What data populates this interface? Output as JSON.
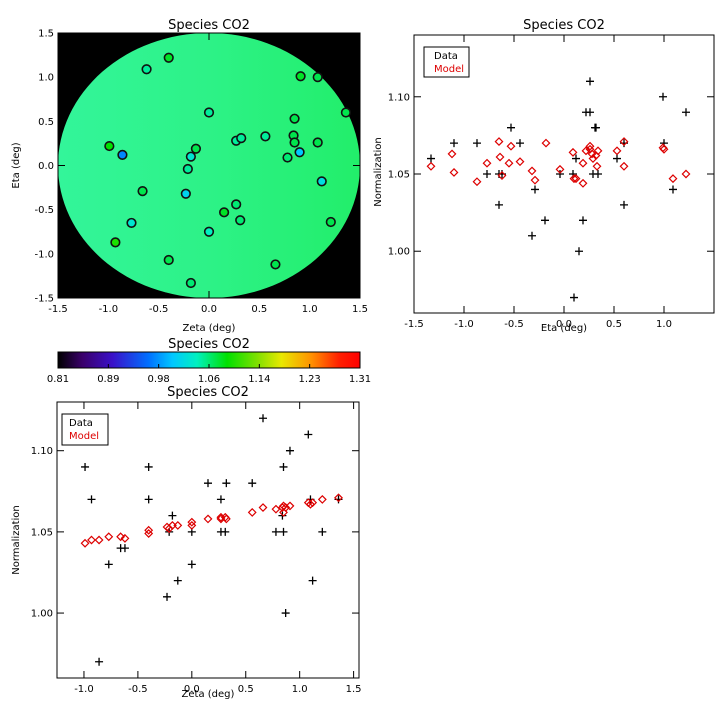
{
  "colors": {
    "data": "#000000",
    "model": "#dd0000",
    "frame": "#000000",
    "mask": "#000000"
  },
  "chart_data": [
    {
      "id": "map",
      "type": "scatter",
      "title": "Species CO2",
      "xlabel": "Zeta (deg)",
      "ylabel": "Eta (deg)",
      "xlim": [
        -1.5,
        1.5
      ],
      "ylim": [
        -1.5,
        1.5
      ],
      "xticks": [
        "-1.5",
        "-1.0",
        "-0.5",
        "0.0",
        "0.5",
        "1.0",
        "1.5"
      ],
      "yticks": [
        "-1.5",
        "-1.0",
        "-0.5",
        "0.0",
        "0.5",
        "1.0",
        "1.5"
      ],
      "grid": false,
      "background_field": "model normalization (green, increasing toward +Zeta)",
      "points": [
        {
          "x": -0.99,
          "y": 0.22,
          "v": 1.09
        },
        {
          "x": -0.86,
          "y": 0.12,
          "v": 0.97
        },
        {
          "x": -0.93,
          "y": -0.87,
          "v": 1.1
        },
        {
          "x": -0.77,
          "y": -0.65,
          "v": 1.03
        },
        {
          "x": -0.66,
          "y": -0.29,
          "v": 1.07
        },
        {
          "x": -0.62,
          "y": 1.09,
          "v": 1.05
        },
        {
          "x": -0.4,
          "y": 1.22,
          "v": 1.08
        },
        {
          "x": -0.4,
          "y": -1.07,
          "v": 1.07
        },
        {
          "x": -0.23,
          "y": -0.32,
          "v": 1.01
        },
        {
          "x": -0.21,
          "y": -0.04,
          "v": 1.05
        },
        {
          "x": -0.18,
          "y": 0.1,
          "v": 1.03
        },
        {
          "x": -0.13,
          "y": 0.19,
          "v": 1.07
        },
        {
          "x": -0.18,
          "y": -1.33,
          "v": 1.06
        },
        {
          "x": 0.0,
          "y": 0.6,
          "v": 1.05
        },
        {
          "x": 0.0,
          "y": -0.75,
          "v": 1.04
        },
        {
          "x": 0.15,
          "y": -0.53,
          "v": 1.08
        },
        {
          "x": 0.27,
          "y": 0.28,
          "v": 1.05
        },
        {
          "x": 0.32,
          "y": 0.31,
          "v": 1.05
        },
        {
          "x": 0.27,
          "y": -0.44,
          "v": 1.06
        },
        {
          "x": 0.31,
          "y": -0.62,
          "v": 1.06
        },
        {
          "x": 0.56,
          "y": 0.33,
          "v": 1.05
        },
        {
          "x": 0.66,
          "y": -1.12,
          "v": 1.07
        },
        {
          "x": 0.78,
          "y": 0.09,
          "v": 1.06
        },
        {
          "x": 0.84,
          "y": 0.34,
          "v": 1.07
        },
        {
          "x": 0.85,
          "y": 0.53,
          "v": 1.07
        },
        {
          "x": 0.85,
          "y": 0.26,
          "v": 1.07
        },
        {
          "x": 0.9,
          "y": 0.15,
          "v": 1.0
        },
        {
          "x": 0.91,
          "y": 1.01,
          "v": 1.08
        },
        {
          "x": 1.08,
          "y": 1.0,
          "v": 1.07
        },
        {
          "x": 1.08,
          "y": 0.26,
          "v": 1.07
        },
        {
          "x": 1.12,
          "y": -0.18,
          "v": 1.02
        },
        {
          "x": 1.21,
          "y": -0.64,
          "v": 1.07
        },
        {
          "x": 1.36,
          "y": 0.6,
          "v": 1.07
        }
      ]
    },
    {
      "id": "eta",
      "type": "scatter",
      "title": "Species CO2",
      "xlabel": "Eta (deg)",
      "ylabel": "Normalization",
      "xlim": [
        -1.5,
        1.5
      ],
      "ylim": [
        0.96,
        1.14
      ],
      "xticks": [
        "-1.5",
        "-1.0",
        "-0.5",
        "0.0",
        "0.5",
        "1.0"
      ],
      "yticks": [
        "1.00",
        "1.05",
        "1.10"
      ],
      "grid": false,
      "legend": {
        "position": "top-left",
        "entries": [
          "Data",
          "Model"
        ]
      },
      "series": [
        {
          "name": "Data",
          "marker": "plus",
          "points": [
            [
              -1.33,
              1.06
            ],
            [
              -1.1,
              1.07
            ],
            [
              -0.87,
              1.07
            ],
            [
              -0.77,
              1.05
            ],
            [
              -0.65,
              1.03
            ],
            [
              -0.65,
              1.05
            ],
            [
              -0.62,
              1.05
            ],
            [
              -0.53,
              1.08
            ],
            [
              -0.44,
              1.07
            ],
            [
              -0.32,
              1.01
            ],
            [
              -0.29,
              1.04
            ],
            [
              -0.19,
              1.02
            ],
            [
              -0.04,
              1.05
            ],
            [
              0.09,
              1.05
            ],
            [
              0.1,
              0.97
            ],
            [
              0.12,
              1.06
            ],
            [
              0.15,
              1.0
            ],
            [
              0.19,
              1.02
            ],
            [
              0.22,
              1.09
            ],
            [
              0.26,
              1.09
            ],
            [
              0.26,
              1.11
            ],
            [
              0.29,
              1.05
            ],
            [
              0.31,
              1.08
            ],
            [
              0.32,
              1.08
            ],
            [
              0.34,
              1.05
            ],
            [
              0.53,
              1.06
            ],
            [
              0.6,
              1.03
            ],
            [
              0.6,
              1.07
            ],
            [
              0.99,
              1.1
            ],
            [
              1.0,
              1.07
            ],
            [
              1.09,
              1.04
            ],
            [
              1.22,
              1.09
            ]
          ]
        },
        {
          "name": "Model",
          "marker": "diamond",
          "points": [
            [
              -1.33,
              1.055
            ],
            [
              -1.12,
              1.063
            ],
            [
              -1.1,
              1.051
            ],
            [
              -0.87,
              1.045
            ],
            [
              -0.77,
              1.057
            ],
            [
              -0.65,
              1.071
            ],
            [
              -0.64,
              1.061
            ],
            [
              -0.62,
              1.049
            ],
            [
              -0.55,
              1.057
            ],
            [
              -0.53,
              1.068
            ],
            [
              -0.44,
              1.058
            ],
            [
              -0.32,
              1.052
            ],
            [
              -0.29,
              1.046
            ],
            [
              -0.18,
              1.07
            ],
            [
              -0.04,
              1.053
            ],
            [
              0.09,
              1.064
            ],
            [
              0.1,
              1.047
            ],
            [
              0.12,
              1.047
            ],
            [
              0.19,
              1.057
            ],
            [
              0.19,
              1.044
            ],
            [
              0.22,
              1.065
            ],
            [
              0.26,
              1.066
            ],
            [
              0.26,
              1.068
            ],
            [
              0.28,
              1.063
            ],
            [
              0.29,
              1.06
            ],
            [
              0.32,
              1.062
            ],
            [
              0.33,
              1.055
            ],
            [
              0.34,
              1.065
            ],
            [
              0.53,
              1.065
            ],
            [
              0.6,
              1.071
            ],
            [
              0.6,
              1.055
            ],
            [
              0.99,
              1.067
            ],
            [
              1.0,
              1.066
            ],
            [
              1.09,
              1.047
            ],
            [
              1.22,
              1.05
            ]
          ]
        }
      ]
    },
    {
      "id": "zeta",
      "type": "scatter",
      "title": "Species CO2",
      "xlabel": "Zeta (deg)",
      "ylabel": "Normalization",
      "xlim": [
        -1.25,
        1.55
      ],
      "ylim": [
        0.96,
        1.13
      ],
      "xticks": [
        "-1.0",
        "-0.5",
        "0.0",
        "0.5",
        "1.0",
        "1.5"
      ],
      "yticks": [
        "1.00",
        "1.05",
        "1.10"
      ],
      "grid": false,
      "legend": {
        "position": "top-left",
        "entries": [
          "Data",
          "Model"
        ]
      },
      "series": [
        {
          "name": "Data",
          "marker": "plus",
          "points": [
            [
              -0.99,
              1.09
            ],
            [
              -0.93,
              1.07
            ],
            [
              -0.86,
              0.97
            ],
            [
              -0.77,
              1.03
            ],
            [
              -0.66,
              1.04
            ],
            [
              -0.62,
              1.04
            ],
            [
              -0.4,
              1.07
            ],
            [
              -0.4,
              1.09
            ],
            [
              -0.23,
              1.01
            ],
            [
              -0.21,
              1.05
            ],
            [
              -0.18,
              1.06
            ],
            [
              -0.13,
              1.02
            ],
            [
              0.0,
              1.05
            ],
            [
              0.0,
              1.03
            ],
            [
              0.15,
              1.08
            ],
            [
              0.27,
              1.05
            ],
            [
              0.27,
              1.07
            ],
            [
              0.31,
              1.05
            ],
            [
              0.32,
              1.08
            ],
            [
              0.56,
              1.08
            ],
            [
              0.66,
              1.12
            ],
            [
              0.78,
              1.05
            ],
            [
              0.84,
              1.06
            ],
            [
              0.85,
              1.09
            ],
            [
              0.85,
              1.05
            ],
            [
              0.87,
              1.0
            ],
            [
              0.91,
              1.1
            ],
            [
              1.08,
              1.11
            ],
            [
              1.1,
              1.07
            ],
            [
              1.12,
              1.02
            ],
            [
              1.21,
              1.05
            ],
            [
              1.36,
              1.07
            ]
          ]
        },
        {
          "name": "Model",
          "marker": "diamond",
          "points": [
            [
              -0.99,
              1.043
            ],
            [
              -0.93,
              1.045
            ],
            [
              -0.86,
              1.045
            ],
            [
              -0.77,
              1.047
            ],
            [
              -0.66,
              1.047
            ],
            [
              -0.62,
              1.046
            ],
            [
              -0.4,
              1.051
            ],
            [
              -0.4,
              1.049
            ],
            [
              -0.23,
              1.053
            ],
            [
              -0.21,
              1.052
            ],
            [
              -0.18,
              1.054
            ],
            [
              -0.13,
              1.054
            ],
            [
              0.0,
              1.056
            ],
            [
              0.0,
              1.054
            ],
            [
              0.15,
              1.058
            ],
            [
              0.27,
              1.058
            ],
            [
              0.27,
              1.059
            ],
            [
              0.31,
              1.059
            ],
            [
              0.32,
              1.058
            ],
            [
              0.56,
              1.062
            ],
            [
              0.66,
              1.065
            ],
            [
              0.78,
              1.064
            ],
            [
              0.84,
              1.065
            ],
            [
              0.85,
              1.066
            ],
            [
              0.85,
              1.062
            ],
            [
              0.87,
              1.065
            ],
            [
              0.91,
              1.066
            ],
            [
              1.08,
              1.068
            ],
            [
              1.1,
              1.067
            ],
            [
              1.12,
              1.068
            ],
            [
              1.21,
              1.07
            ],
            [
              1.36,
              1.071
            ]
          ]
        }
      ]
    },
    {
      "id": "colorbar",
      "type": "heatmap",
      "title": "Species CO2",
      "range": [
        0.81,
        1.31
      ],
      "tick_labels": [
        "0.81",
        "0.89",
        "0.98",
        "1.06",
        "1.14",
        "1.23",
        "1.31"
      ],
      "colormap": "rainbow"
    }
  ]
}
